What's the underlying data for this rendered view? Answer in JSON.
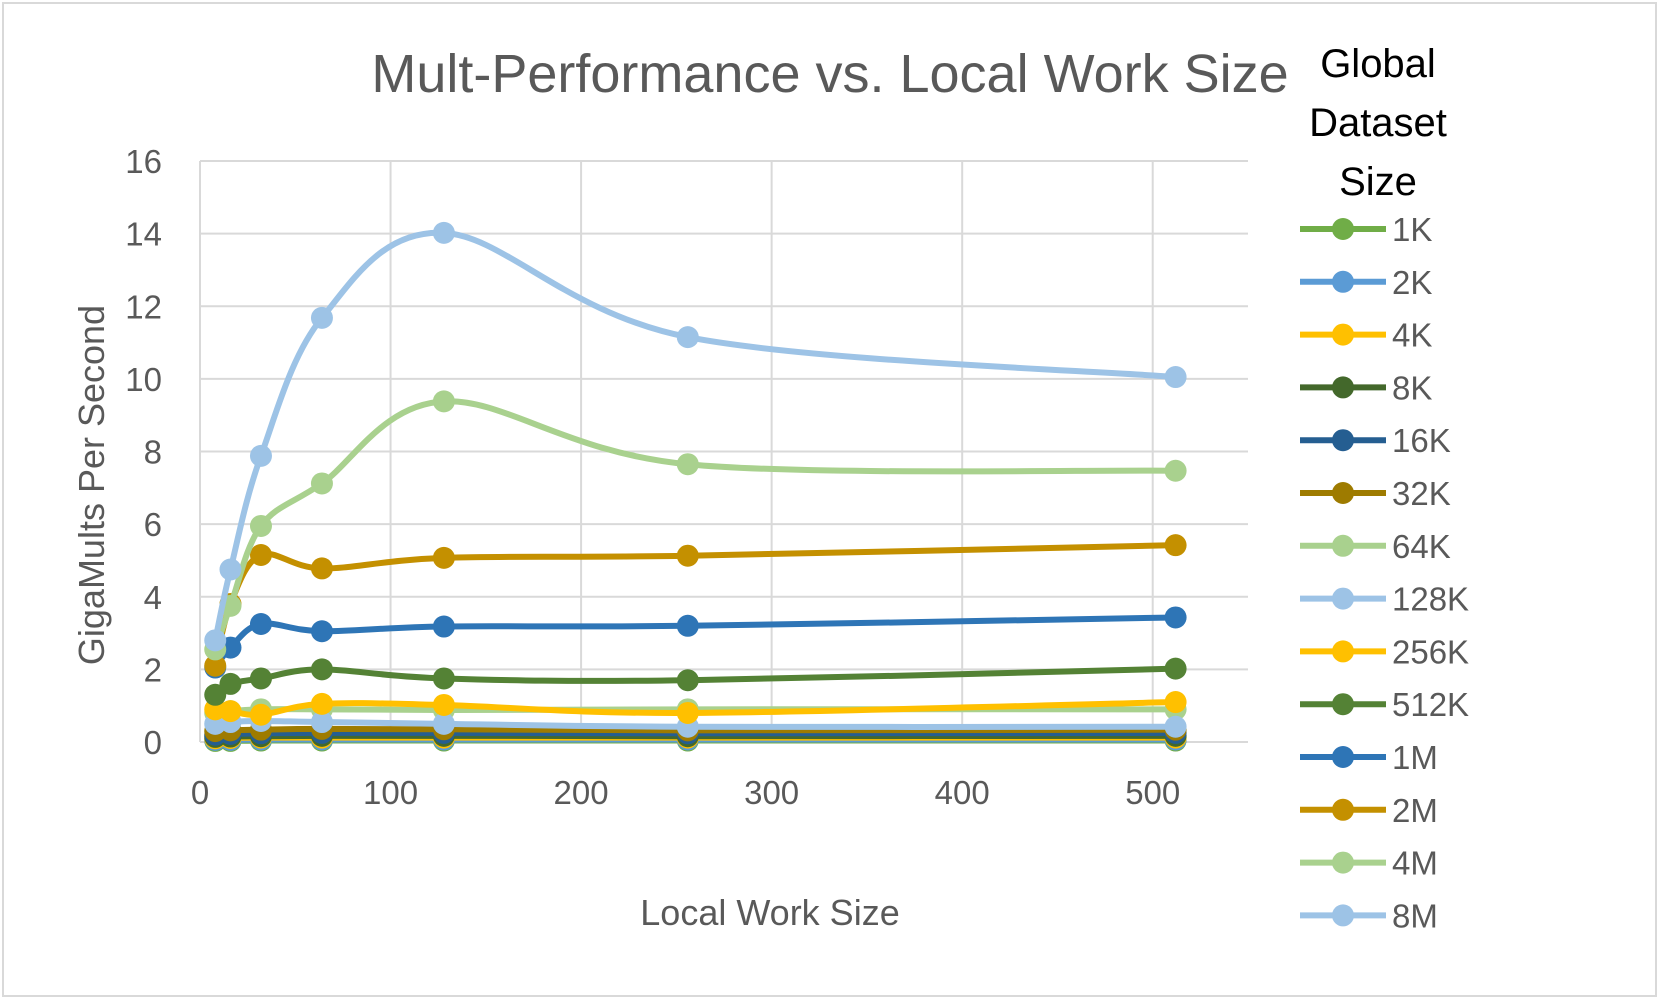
{
  "chart_data": {
    "type": "line",
    "title": "Mult-Performance vs. Local Work Size",
    "xlabel": "Local Work Size",
    "ylabel": "GigaMults Per Second",
    "xlim": [
      0,
      550
    ],
    "ylim": [
      0,
      16
    ],
    "x_ticks": [
      0,
      100,
      200,
      300,
      400,
      500
    ],
    "y_ticks": [
      0,
      2,
      4,
      6,
      8,
      10,
      12,
      14,
      16
    ],
    "grid": true,
    "smooth": true,
    "legend_title": "Global Dataset Size",
    "legend_position": "right",
    "x": [
      8,
      16,
      32,
      64,
      128,
      256,
      512
    ],
    "series": [
      {
        "name": "1K",
        "color": "#70ad47",
        "values": [
          0.03,
          0.03,
          0.04,
          0.04,
          0.04,
          0.04,
          0.04
        ]
      },
      {
        "name": "2K",
        "color": "#5b9bd5",
        "values": [
          0.06,
          0.06,
          0.07,
          0.07,
          0.07,
          0.07,
          0.07
        ]
      },
      {
        "name": "4K",
        "color": "#ffc000",
        "values": [
          0.1,
          0.11,
          0.12,
          0.12,
          0.12,
          0.12,
          0.12
        ]
      },
      {
        "name": "8K",
        "color": "#43682b",
        "values": [
          0.14,
          0.15,
          0.16,
          0.17,
          0.17,
          0.16,
          0.17
        ]
      },
      {
        "name": "16K",
        "color": "#255e91",
        "values": [
          0.2,
          0.22,
          0.24,
          0.25,
          0.25,
          0.24,
          0.25
        ]
      },
      {
        "name": "32K",
        "color": "#9e7b00",
        "values": [
          0.3,
          0.32,
          0.34,
          0.36,
          0.35,
          0.32,
          0.34
        ]
      },
      {
        "name": "64K",
        "color": "#a9d18e",
        "values": [
          0.8,
          0.85,
          0.9,
          0.9,
          0.88,
          0.9,
          0.9
        ]
      },
      {
        "name": "128K",
        "color": "#9dc3e6",
        "values": [
          0.5,
          0.55,
          0.58,
          0.55,
          0.5,
          0.42,
          0.42
        ]
      },
      {
        "name": "256K",
        "color": "#ffc000",
        "values": [
          0.9,
          0.85,
          0.75,
          1.05,
          1.02,
          0.8,
          1.1
        ]
      },
      {
        "name": "512K",
        "color": "#548235",
        "values": [
          1.3,
          1.6,
          1.75,
          2.0,
          1.75,
          1.7,
          2.02
        ]
      },
      {
        "name": "1M",
        "color": "#2e75b6",
        "values": [
          2.05,
          2.6,
          3.25,
          3.05,
          3.18,
          3.2,
          3.43
        ]
      },
      {
        "name": "2M",
        "color": "#c49000",
        "values": [
          2.1,
          3.8,
          5.15,
          4.78,
          5.07,
          5.13,
          5.42
        ]
      },
      {
        "name": "4M",
        "color": "#a9d18e",
        "values": [
          2.55,
          3.75,
          5.95,
          7.12,
          9.38,
          7.65,
          7.47
        ]
      },
      {
        "name": "8M",
        "color": "#9dc3e6",
        "values": [
          2.8,
          4.75,
          7.88,
          11.68,
          14.02,
          11.15,
          10.05
        ]
      }
    ]
  }
}
